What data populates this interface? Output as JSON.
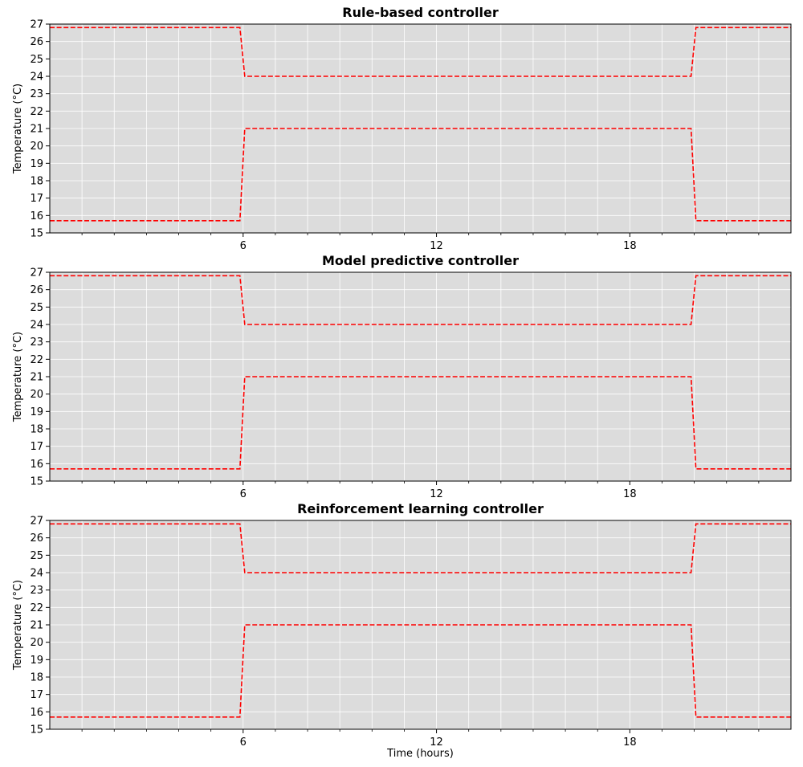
{
  "chart_data": [
    {
      "type": "line",
      "title": "Rule-based controller",
      "xlabel": "",
      "ylabel": "Temperature (°C)",
      "xlim": [
        0,
        23
      ],
      "ylim": [
        15,
        27
      ],
      "xticks": [
        6,
        12,
        18
      ],
      "xtick_labels": [
        "6",
        "12",
        "18"
      ],
      "xminor_step": 1,
      "yticks": [
        15,
        16,
        17,
        18,
        19,
        20,
        21,
        22,
        23,
        24,
        25,
        26,
        27
      ],
      "grid": true,
      "series": [
        {
          "color": "#ff0000",
          "style": "dashed",
          "x": [
            0,
            5.9,
            6.05,
            19.9,
            20.05,
            23
          ],
          "y": [
            26.8,
            26.8,
            24.0,
            24.0,
            26.8,
            26.8
          ]
        },
        {
          "color": "#ff0000",
          "style": "dashed",
          "x": [
            0,
            5.9,
            6.05,
            19.9,
            20.05,
            23
          ],
          "y": [
            15.7,
            15.7,
            21.0,
            21.0,
            15.7,
            15.7
          ]
        }
      ]
    },
    {
      "type": "line",
      "title": "Model predictive controller",
      "xlabel": "",
      "ylabel": "Temperature (°C)",
      "xlim": [
        0,
        23
      ],
      "ylim": [
        15,
        27
      ],
      "xticks": [
        6,
        12,
        18
      ],
      "xtick_labels": [
        "6",
        "12",
        "18"
      ],
      "xminor_step": 1,
      "yticks": [
        15,
        16,
        17,
        18,
        19,
        20,
        21,
        22,
        23,
        24,
        25,
        26,
        27
      ],
      "grid": true,
      "series": [
        {
          "color": "#ff0000",
          "style": "dashed",
          "x": [
            0,
            5.9,
            6.05,
            19.9,
            20.05,
            23
          ],
          "y": [
            26.8,
            26.8,
            24.0,
            24.0,
            26.8,
            26.8
          ]
        },
        {
          "color": "#ff0000",
          "style": "dashed",
          "x": [
            0,
            5.9,
            6.05,
            19.9,
            20.05,
            23
          ],
          "y": [
            15.7,
            15.7,
            21.0,
            21.0,
            15.7,
            15.7
          ]
        }
      ]
    },
    {
      "type": "line",
      "title": "Reinforcement learning controller",
      "xlabel": "Time (hours)",
      "ylabel": "Temperature (°C)",
      "xlim": [
        0,
        23
      ],
      "ylim": [
        15,
        27
      ],
      "xticks": [
        6,
        12,
        18
      ],
      "xtick_labels": [
        "6",
        "12",
        "18"
      ],
      "xminor_step": 1,
      "yticks": [
        15,
        16,
        17,
        18,
        19,
        20,
        21,
        22,
        23,
        24,
        25,
        26,
        27
      ],
      "grid": true,
      "series": [
        {
          "color": "#ff0000",
          "style": "dashed",
          "x": [
            0,
            5.9,
            6.05,
            19.9,
            20.05,
            23
          ],
          "y": [
            26.8,
            26.8,
            24.0,
            24.0,
            26.8,
            26.8
          ]
        },
        {
          "color": "#ff0000",
          "style": "dashed",
          "x": [
            0,
            5.9,
            6.05,
            19.9,
            20.05,
            23
          ],
          "y": [
            15.7,
            15.7,
            21.0,
            21.0,
            15.7,
            15.7
          ]
        }
      ]
    }
  ],
  "colors": {
    "axes_background": "#dcdcdc",
    "grid": "#ffffff",
    "series": "#ff0000"
  }
}
